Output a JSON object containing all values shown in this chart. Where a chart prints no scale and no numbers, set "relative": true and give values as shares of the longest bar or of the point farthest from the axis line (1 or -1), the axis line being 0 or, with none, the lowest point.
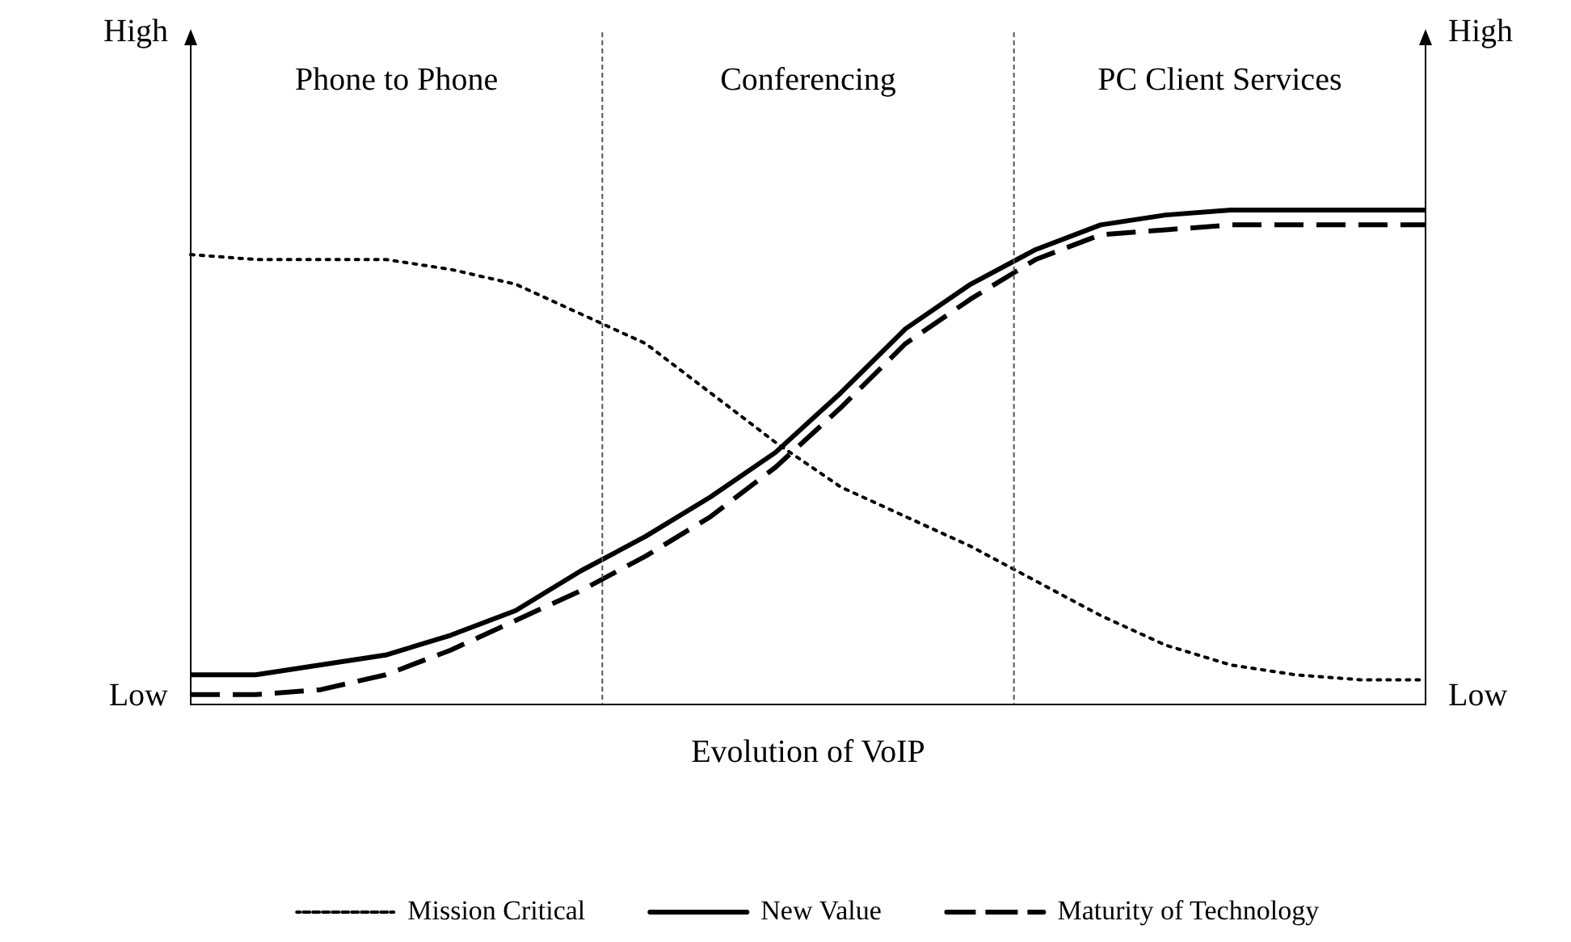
{
  "chart_data": {
    "type": "line",
    "relative": true,
    "xlabel": "Evolution of VoIP",
    "grid": false,
    "legend": "bottom",
    "marker": "none",
    "annotations": [
      "Phone to Phone",
      "Conferencing",
      "PC Client Services",
      "High",
      "Low",
      "High",
      "Low"
    ],
    "categories": [
      null,
      null,
      null,
      null,
      null,
      null,
      null,
      null,
      null,
      null,
      null,
      null,
      null,
      null,
      null,
      null,
      null,
      null,
      null,
      null
    ],
    "series": [
      {
        "name": "Mission Critical",
        "color": "#000000",
        "line_style": "dotted",
        "values": [
          0.91,
          0.9,
          0.9,
          0.9,
          0.88,
          0.85,
          0.79,
          0.73,
          0.63,
          0.53,
          0.44,
          0.38,
          0.32,
          0.25,
          0.18,
          0.12,
          0.08,
          0.06,
          0.05,
          0.05
        ]
      },
      {
        "name": "New Value",
        "color": "#000000",
        "line_style": "solid",
        "values": [
          0.06,
          0.06,
          0.08,
          0.1,
          0.14,
          0.19,
          0.27,
          0.34,
          0.42,
          0.51,
          0.63,
          0.76,
          0.85,
          0.92,
          0.97,
          0.99,
          1,
          1,
          1,
          1
        ]
      },
      {
        "name": "Maturity of Technology",
        "color": "#000000",
        "line_style": "dashed",
        "values": [
          0.02,
          0.02,
          0.03,
          0.06,
          0.11,
          0.17,
          0.23,
          0.3,
          0.38,
          0.48,
          0.6,
          0.73,
          0.82,
          0.9,
          0.95,
          0.96,
          0.97,
          0.97,
          0.97,
          0.97
        ]
      }
    ]
  }
}
